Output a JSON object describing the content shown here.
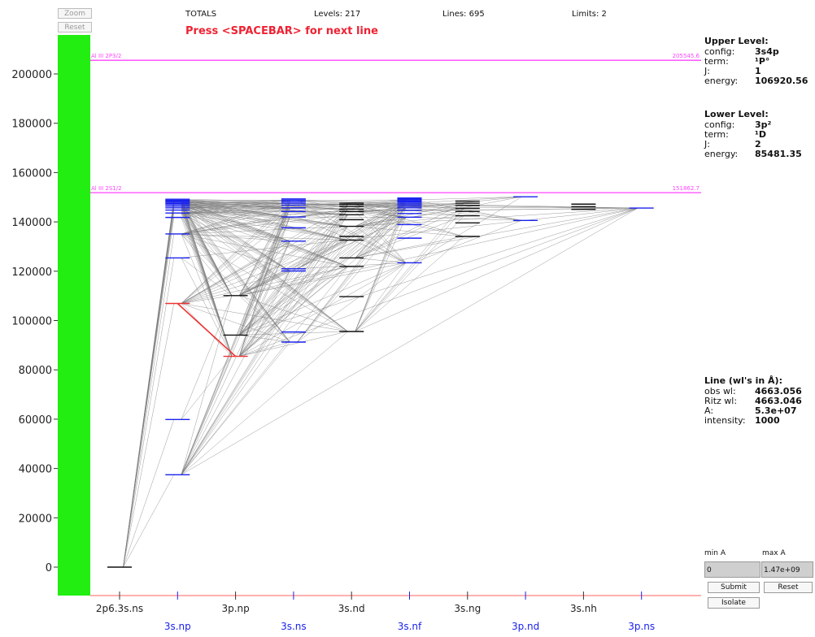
{
  "toolbar": {
    "zoom_label": "Zoom",
    "reset_label": "Reset"
  },
  "header": {
    "totals": "TOTALS",
    "levels": "Levels: 217",
    "lines": "Lines: 695",
    "limits": "Limits: 2",
    "prompt": "Press <SPACEBAR> for next line"
  },
  "upper_level": {
    "title": "Upper Level:",
    "config_label": "config:",
    "config": "3s4p",
    "term_label": "term:",
    "term": "¹P°",
    "j_label": "J:",
    "j": "1",
    "energy_label": "energy:",
    "energy": "106920.56"
  },
  "lower_level": {
    "title": "Lower Level:",
    "config_label": "config:",
    "config": "3p²",
    "term_label": "term:",
    "term": "¹D",
    "j_label": "J:",
    "j": "2",
    "energy_label": "energy:",
    "energy": "85481.35"
  },
  "line_info": {
    "title": "Line (wl's in Å):",
    "obs_label": "obs wl:",
    "obs": "4663.056",
    "ritz_label": "Ritz wl:",
    "ritz": "4663.046",
    "a_label": "A:",
    "a": "5.3e+07",
    "intensity_label": "intensity:",
    "intensity": "1000"
  },
  "controls": {
    "min_label": "min A",
    "max_label": "max A",
    "min_value": "0",
    "max_value": "1.47e+09",
    "submit": "Submit",
    "reset": "Reset",
    "isolate": "Isolate"
  },
  "colors": {
    "green_bar": "#22ee11",
    "limit": "#ff44ff",
    "level_blue": "#1a22ee",
    "level_black": "#111111",
    "line_gray": "#7a7a7a",
    "selected": "#ee3333",
    "axis_pink": "#ff8080"
  },
  "chart_data": {
    "type": "grotrian",
    "ylim": [
      0,
      210000
    ],
    "yticks": [
      0,
      20000,
      40000,
      60000,
      80000,
      100000,
      120000,
      140000,
      160000,
      180000,
      200000
    ],
    "bottom_row": [
      "2p6.3s.ns",
      "3p.np",
      "3s.nd",
      "3s.ng",
      "3s.nh"
    ],
    "top_row": [
      "3s.np",
      "3s.ns",
      "3s.nf",
      "3p.nd",
      "3p.ns"
    ],
    "limits": [
      {
        "label": "Al III 2P3/2",
        "value": 205545.6,
        "right_label": "205545.6"
      },
      {
        "label": "Al III 2S1/2",
        "value": 151862.7,
        "right_label": "151862.7"
      }
    ],
    "columns": [
      {
        "name": "2p6.3s.ns",
        "color": "black",
        "levels": [
          0
        ]
      },
      {
        "name": "3s.np",
        "color": "blue",
        "levels": [
          37454,
          59850,
          106920,
          125400,
          135100,
          141800,
          143600,
          144800,
          145700,
          146400,
          147000,
          147500,
          148000,
          148400,
          148800,
          149200
        ]
      },
      {
        "name": "3p.np",
        "color": "black",
        "levels": [
          85481,
          94100,
          110100
        ]
      },
      {
        "name": "3s.ns",
        "color": "blue",
        "levels": [
          91270,
          95350,
          120100,
          121000,
          132200,
          137600,
          142000,
          144200,
          145700,
          146800,
          147600,
          148200,
          148800,
          149300
        ]
      },
      {
        "name": "3s.nd",
        "color": "black",
        "levels": [
          95550,
          109700,
          121900,
          125400,
          132600,
          134100,
          138200,
          140900,
          142900,
          144200,
          145200,
          146200,
          147000,
          147600
        ]
      },
      {
        "name": "3s.nf",
        "color": "blue",
        "levels": [
          123400,
          133400,
          138900,
          141900,
          143400,
          144700,
          145700,
          146400,
          147000,
          147600,
          148100,
          148500,
          148900,
          149300,
          149700
        ]
      },
      {
        "name": "3s.ng",
        "color": "black",
        "levels": [
          134100,
          139600,
          142500,
          144200,
          145500,
          146700,
          147600,
          148400
        ]
      },
      {
        "name": "3p.nd",
        "color": "blue",
        "levels": [
          140600,
          150200
        ]
      },
      {
        "name": "3s.nh",
        "color": "black",
        "levels": [
          145100,
          146200,
          147200
        ]
      },
      {
        "name": "3p.ns",
        "color": "blue",
        "levels": [
          145600
        ]
      }
    ],
    "selected_line": {
      "from": [
        2,
        85481
      ],
      "to": [
        1,
        106920
      ],
      "obs_wl": 4663.056
    }
  }
}
